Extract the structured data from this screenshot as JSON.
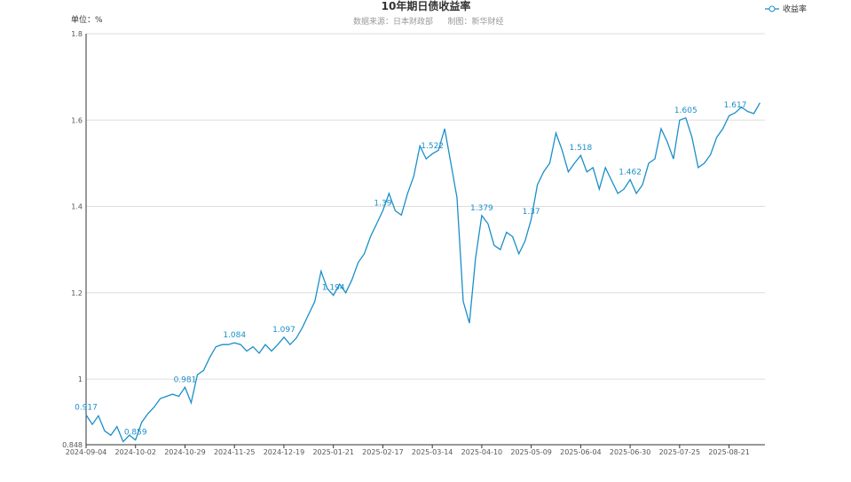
{
  "chart_data": {
    "type": "line",
    "title": "10年期日债收益率",
    "subtitle": "数据来源：日本财政部",
    "credit": "制图：新华财经",
    "y_axis_label": "单位：%",
    "categories": [
      "2024-09-04",
      null,
      null,
      null,
      null,
      null,
      null,
      null,
      "2024-10-02",
      null,
      null,
      null,
      null,
      null,
      null,
      null,
      "2024-10-29",
      null,
      null,
      null,
      null,
      null,
      null,
      null,
      "2024-11-25",
      null,
      null,
      null,
      null,
      null,
      null,
      null,
      "2024-12-19",
      null,
      null,
      null,
      null,
      null,
      null,
      null,
      "2025-01-21",
      null,
      null,
      null,
      null,
      null,
      null,
      null,
      "2025-02-17",
      null,
      null,
      null,
      null,
      null,
      null,
      null,
      "2025-03-14",
      null,
      null,
      null,
      null,
      null,
      null,
      null,
      "2025-04-10",
      null,
      null,
      null,
      null,
      null,
      null,
      null,
      "2025-05-09",
      null,
      null,
      null,
      null,
      null,
      null,
      null,
      "2025-06-04",
      null,
      null,
      null,
      null,
      null,
      null,
      null,
      "2025-06-30",
      null,
      null,
      null,
      null,
      null,
      null,
      null,
      "2025-07-25",
      null,
      null,
      null,
      null,
      null,
      null,
      null,
      "2025-08-21",
      null,
      null,
      null,
      null,
      null
    ],
    "series": [
      {
        "name": "收益率",
        "color": "#1a8fc9",
        "values": [
          0.917,
          0.895,
          0.915,
          0.88,
          0.87,
          0.89,
          0.855,
          0.87,
          0.859,
          0.9,
          0.92,
          0.935,
          0.955,
          0.96,
          0.965,
          0.96,
          0.981,
          0.945,
          1.01,
          1.02,
          1.05,
          1.075,
          1.08,
          1.08,
          1.084,
          1.08,
          1.065,
          1.075,
          1.06,
          1.08,
          1.065,
          1.08,
          1.097,
          1.08,
          1.095,
          1.12,
          1.15,
          1.18,
          1.25,
          1.21,
          1.194,
          1.22,
          1.2,
          1.23,
          1.27,
          1.29,
          1.33,
          1.36,
          1.39,
          1.43,
          1.39,
          1.38,
          1.43,
          1.47,
          1.54,
          1.51,
          1.522,
          1.53,
          1.58,
          1.5,
          1.42,
          1.18,
          1.13,
          1.28,
          1.379,
          1.36,
          1.31,
          1.3,
          1.34,
          1.33,
          1.29,
          1.32,
          1.37,
          1.45,
          1.48,
          1.5,
          1.57,
          1.53,
          1.48,
          1.5,
          1.518,
          1.48,
          1.49,
          1.44,
          1.49,
          1.46,
          1.43,
          1.44,
          1.462,
          1.43,
          1.45,
          1.5,
          1.51,
          1.58,
          1.55,
          1.51,
          1.6,
          1.605,
          1.56,
          1.49,
          1.5,
          1.52,
          1.56,
          1.58,
          1.61,
          1.617,
          1.63,
          1.62,
          1.615,
          1.64
        ],
        "value_labels": [
          "0.917",
          null,
          null,
          null,
          null,
          null,
          null,
          null,
          "0.859",
          null,
          null,
          null,
          null,
          null,
          null,
          null,
          "0.981",
          null,
          null,
          null,
          null,
          null,
          null,
          null,
          "1.084",
          null,
          null,
          null,
          null,
          null,
          null,
          null,
          "1.097",
          null,
          null,
          null,
          null,
          null,
          null,
          null,
          "1.194",
          null,
          null,
          null,
          null,
          null,
          null,
          null,
          "1.39",
          null,
          null,
          null,
          null,
          null,
          null,
          null,
          "1.522",
          null,
          null,
          null,
          null,
          null,
          null,
          null,
          "1.379",
          null,
          null,
          null,
          null,
          null,
          null,
          null,
          "1.37",
          null,
          null,
          null,
          null,
          null,
          null,
          null,
          "1.518",
          null,
          null,
          null,
          null,
          null,
          null,
          null,
          "1.462",
          null,
          null,
          null,
          null,
          null,
          null,
          null,
          null,
          "1.605",
          null,
          null,
          null,
          null,
          null,
          null,
          null,
          "1.617",
          null,
          null,
          null,
          null
        ]
      }
    ],
    "ylim": [
      0.848,
      1.8
    ],
    "yticks": [
      {
        "value": 0.848,
        "label": "0.848"
      },
      1,
      1.2,
      1.4,
      1.6,
      1.8
    ],
    "grid": true,
    "legend": "top-right"
  }
}
